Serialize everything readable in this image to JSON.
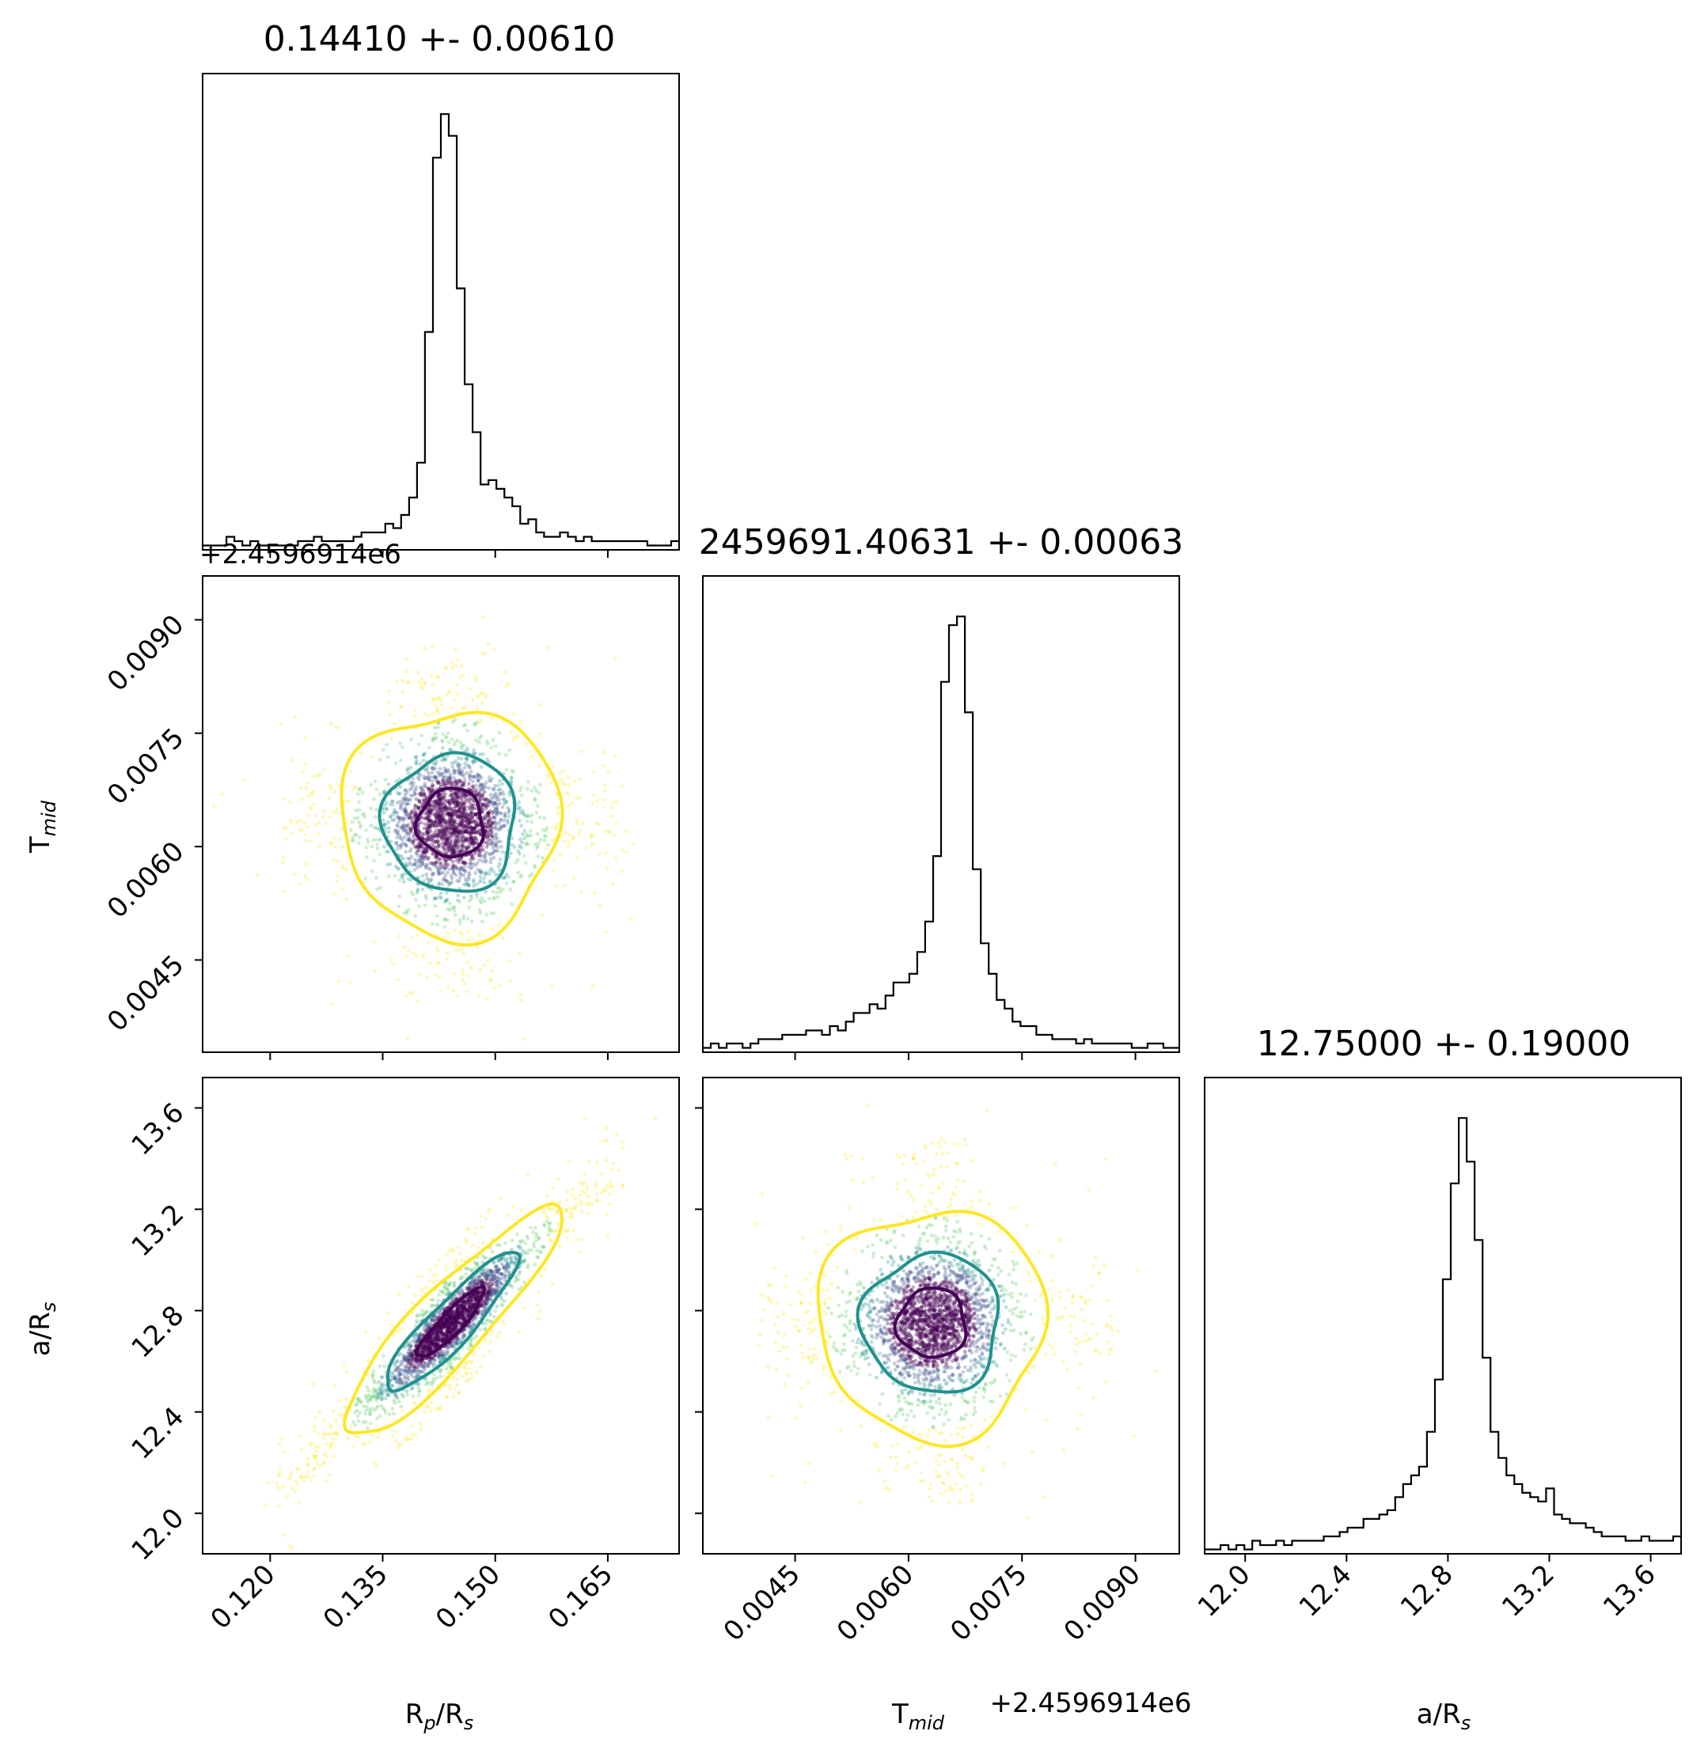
{
  "colors": {
    "background": "#ffffff",
    "axes": "#000000",
    "histogram_line": "#000000",
    "contour_inner": "#440154",
    "contour_middle": "#21918c",
    "contour_outer": "#fde725",
    "points_colormap": "viridis"
  },
  "chart_data": [
    {
      "panel": "histogram R_p/R_s",
      "type": "histogram",
      "title": "0.14410 +- 0.00610",
      "xlim": [
        0.111,
        0.1745
      ],
      "x_ticks": [
        "0.120",
        "0.135",
        "0.150",
        "0.165"
      ],
      "tick_labels_shown": false,
      "bins": {
        "start": 0.111,
        "end": 0.1745,
        "counts": [
          1,
          1,
          1,
          3,
          2,
          1,
          2,
          1,
          1,
          1,
          1,
          1,
          2,
          2,
          3,
          2,
          2,
          2,
          2,
          3,
          4,
          4,
          4,
          6,
          5,
          8,
          12,
          20,
          50,
          90,
          100,
          95,
          60,
          38,
          27,
          15,
          16,
          14,
          12,
          10,
          6,
          7,
          4,
          3,
          3,
          4,
          3,
          2,
          3,
          2,
          2,
          2,
          2,
          2,
          2,
          2,
          1,
          1,
          1,
          2
        ]
      }
    },
    {
      "panel": "scatter R_p/R_s vs T_mid",
      "type": "scatter",
      "contour_levels": 3,
      "xlim": [
        0.111,
        0.1745
      ],
      "ylim": [
        0.00328,
        0.00958
      ],
      "x_ticks": [
        "0.120",
        "0.135",
        "0.150",
        "0.165"
      ],
      "x_tick_labels_shown": false,
      "y_ticks": [
        "0.0045",
        "0.0060",
        "0.0075",
        "0.0090"
      ],
      "ylabel": "T_mid",
      "y_offset_label": "+2.4596914e6",
      "center": [
        0.1441,
        0.00631
      ],
      "spread": [
        0.0061,
        0.00063
      ],
      "correlation": 0.0
    },
    {
      "panel": "histogram T_mid",
      "type": "histogram",
      "title": "2459691.40631 +- 0.00063",
      "xlim": [
        0.00328,
        0.00958
      ],
      "x_ticks": [
        "0.0045",
        "0.0060",
        "0.0075",
        "0.0090"
      ],
      "tick_labels_shown": false,
      "bins": {
        "start": 0.00328,
        "end": 0.00958,
        "counts": [
          1,
          2,
          1,
          2,
          2,
          1,
          2,
          3,
          3,
          3,
          4,
          4,
          4,
          5,
          5,
          4,
          6,
          5,
          7,
          9,
          9,
          11,
          10,
          13,
          16,
          16,
          18,
          23,
          30,
          45,
          85,
          98,
          100,
          78,
          42,
          25,
          18,
          12,
          10,
          7,
          6,
          6,
          4,
          4,
          3,
          3,
          3,
          2,
          3,
          2,
          2,
          2,
          2,
          2,
          1,
          1,
          2,
          2,
          1,
          1
        ]
      }
    },
    {
      "panel": "scatter R_p/R_s vs a/R_s",
      "type": "scatter",
      "contour_levels": 3,
      "xlim": [
        0.111,
        0.1745
      ],
      "ylim": [
        11.84,
        13.72
      ],
      "x_ticks": [
        "0.120",
        "0.135",
        "0.150",
        "0.165"
      ],
      "xlabel": "R_p/R_s",
      "y_ticks": [
        "12.0",
        "12.4",
        "12.8",
        "13.2",
        "13.6"
      ],
      "ylabel": "a/R_s",
      "center": [
        0.1441,
        12.75
      ],
      "spread": [
        0.0061,
        0.19
      ],
      "correlation": 0.9
    },
    {
      "panel": "scatter T_mid vs a/R_s",
      "type": "scatter",
      "contour_levels": 3,
      "xlim": [
        0.00328,
        0.00958
      ],
      "ylim": [
        11.84,
        13.72
      ],
      "x_ticks": [
        "0.0045",
        "0.0060",
        "0.0075",
        "0.0090"
      ],
      "xlabel": "T_mid",
      "x_offset_label": "+2.4596914e6",
      "y_ticks": [
        "12.0",
        "12.4",
        "12.8",
        "13.2",
        "13.6"
      ],
      "y_tick_labels_shown": false,
      "center": [
        0.00631,
        12.75
      ],
      "spread": [
        0.00063,
        0.19
      ],
      "correlation": 0.0
    },
    {
      "panel": "histogram a/R_s",
      "type": "histogram",
      "title": "12.75000 +- 0.19000",
      "xlim": [
        11.84,
        13.72
      ],
      "x_ticks": [
        "12.0",
        "12.4",
        "12.8",
        "13.2",
        "13.6"
      ],
      "xlabel": "a/R_s",
      "bins": {
        "start": 11.84,
        "end": 13.72,
        "counts": [
          1,
          1,
          2,
          1,
          2,
          1,
          3,
          2,
          2,
          3,
          2,
          3,
          3,
          3,
          3,
          4,
          4,
          5,
          6,
          6,
          8,
          8,
          9,
          10,
          13,
          16,
          18,
          20,
          28,
          40,
          63,
          85,
          100,
          90,
          72,
          45,
          28,
          22,
          18,
          16,
          14,
          13,
          12,
          15,
          9,
          8,
          7,
          7,
          6,
          5,
          4,
          4,
          4,
          3,
          3,
          4,
          3,
          3,
          3,
          4
        ]
      }
    }
  ],
  "labels": {
    "rp_rs": {
      "main": "R",
      "sub1": "p",
      "mid": "/R",
      "sub2": "s"
    },
    "tmid": {
      "main": "T",
      "sub": "mid"
    },
    "ars": {
      "main": "a/R",
      "sub": "s"
    },
    "offset": "+2.4596914e6"
  }
}
